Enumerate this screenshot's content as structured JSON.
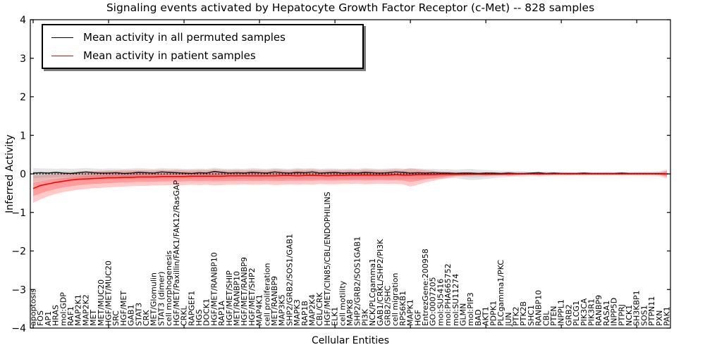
{
  "figure": {
    "title": "Signaling events activated by Hepatocyte Growth Factor Receptor (c-Met) -- 828 samples",
    "xlabel": "Cellular Entities",
    "ylabel": "Inferred Activity"
  },
  "legend": {
    "items": [
      {
        "label": "Mean activity in all permuted samples",
        "color": "#000000"
      },
      {
        "label": "Mean activity in patient samples",
        "color": "#ff0000"
      }
    ]
  },
  "colors": {
    "background": "#ffffff",
    "axis": "#000000",
    "permuted_line": "#000000",
    "patient_line": "#ff0000",
    "permuted_band": "#999999",
    "patient_band": "#ff2a2a",
    "zero_line": "#000000"
  },
  "chart_data": {
    "type": "line",
    "title": "Signaling events activated by Hepatocyte Growth Factor Receptor (c-Met) -- 828 samples",
    "xlabel": "Cellular Entities",
    "ylabel": "Inferred Activity",
    "ylim": [
      -4,
      4
    ],
    "yticks": [
      4,
      3,
      2,
      1,
      0,
      -1,
      -2,
      -3,
      -4
    ],
    "grid": false,
    "legend_position": "upper left",
    "zero_line": true,
    "categories": [
      "apoptosis",
      "FOS",
      "AP1",
      "HRAS",
      "mol:GDP",
      "RAF1",
      "MAP2K1",
      "MAP2K2",
      "MET",
      "MET/MUC20",
      "HGF/MET/MUC20",
      "SRC",
      "HGF/MET",
      "GAB1",
      "STAT3",
      "CRK",
      "MET/Glomulin",
      "STAT3 (dimer)",
      "cell morphogenesis",
      "HGF/MET/Paxillin/FAK1/FAK12/RasGAP",
      "CRKL",
      "RAPGEF1",
      "HGS",
      "DOCK1",
      "HGF/MET/RANBP10",
      "RAP1A",
      "HGF/MET/SHIP",
      "MET/RANBP10",
      "HGF/MET/RANBP9",
      "HGF/MET/SHP2",
      "MAP4K1",
      "cell proliferation",
      "MET/RANBP9",
      "MAP3K5",
      "SHP2/GRB2/SOS1/GAB1",
      "MAPK3",
      "RAP1B",
      "MAP2K4",
      "CBL/CRK",
      "HGF/MET/CIN85/CBL/ENDOPHILINS",
      "ELK1",
      "cell motility",
      "MAPK8",
      "SHP2/GRB2/SOS1GAB1",
      "PI3K",
      "NCK/PLCgamma1",
      "GAB1/CRKL/SHP2/PI3K",
      "GRB2/SHC",
      "cell migration",
      "RPS6KB1",
      "MAPK1",
      "HGF",
      "EntrezGene:200958",
      "GO:0007205",
      "mol:SU5416",
      "mol:PHA665752",
      "mol:SU11274",
      "GLMN",
      "mol:PIP3",
      "BAD",
      "AKT1",
      "PDPK1",
      "PLCgamma1/PKC",
      "JUN",
      "PTK2",
      "PTK2B",
      "SHC1",
      "RANBP10",
      "CBL",
      "PTEN",
      "INPPL1",
      "GRB2",
      "PLCG1",
      "PIK3CA",
      "PIK3R1",
      "RANBP9",
      "RASA1",
      "INPP5D",
      "PTPRJ",
      "NCK1",
      "SH3KBP1",
      "SOS1",
      "PTPN11",
      "PXN",
      "PAK1"
    ],
    "series": [
      {
        "name": "Mean activity in all permuted samples",
        "color": "#000000",
        "values": [
          0.02,
          0.03,
          0.02,
          0.04,
          0.02,
          0.01,
          0.03,
          0.05,
          0.03,
          0.02,
          0.02,
          0.03,
          0.01,
          0.02,
          0.04,
          0.03,
          0.02,
          0.05,
          0.04,
          0.03,
          0.02,
          0.01,
          0.03,
          0.02,
          0.06,
          0.04,
          0.02,
          0.03,
          0.02,
          0.04,
          0.03,
          0.02,
          0.05,
          0.03,
          0.02,
          0.04,
          0.03,
          0.05,
          0.02,
          0.03,
          0.04,
          0.02,
          0.03,
          0.02,
          0.04,
          0.03,
          0.02,
          0.03,
          0.05,
          0.04,
          0.02,
          0.03,
          0.02,
          0.03,
          0.02,
          0.02,
          0.01,
          0.02,
          0.02,
          0.01,
          0.02,
          0.02,
          0.01,
          0.02,
          0.01,
          0.01,
          0.02,
          0.03,
          0.01,
          0.02,
          0.01,
          0.01,
          0.01,
          0.02,
          0.01,
          0.01,
          0.01,
          0.01,
          0.02,
          0.01,
          0.01,
          0.01,
          0.01,
          0.01,
          0.0
        ]
      },
      {
        "name": "Mean activity in patient samples",
        "color": "#ff0000",
        "values": [
          -0.38,
          -0.3,
          -0.26,
          -0.22,
          -0.19,
          -0.16,
          -0.14,
          -0.13,
          -0.12,
          -0.11,
          -0.1,
          -0.1,
          -0.09,
          -0.09,
          -0.08,
          -0.08,
          -0.08,
          -0.07,
          -0.07,
          -0.07,
          -0.07,
          -0.06,
          -0.06,
          -0.06,
          -0.06,
          -0.06,
          -0.05,
          -0.05,
          -0.05,
          -0.05,
          -0.05,
          -0.05,
          -0.05,
          -0.04,
          -0.04,
          -0.05,
          -0.04,
          -0.04,
          -0.04,
          -0.05,
          -0.04,
          -0.04,
          -0.03,
          -0.03,
          -0.03,
          -0.03,
          -0.03,
          -0.03,
          -0.02,
          -0.03,
          -0.03,
          -0.02,
          -0.02,
          -0.02,
          -0.01,
          -0.01,
          -0.01,
          -0.01,
          -0.01,
          -0.01,
          -0.01,
          -0.01,
          -0.01,
          0.0,
          0.0,
          0.0,
          0.0,
          0.0,
          0.0,
          0.0,
          0.0,
          0.0,
          0.0,
          0.0,
          0.0,
          0.0,
          0.0,
          0.0,
          0.0,
          0.0,
          0.0,
          0.0,
          0.0,
          0.0,
          0.0
        ]
      }
    ],
    "bands": [
      {
        "name": "permuted-confidence",
        "color": "#999999",
        "upper": [
          0.15,
          0.14,
          0.14,
          0.13,
          0.14,
          0.13,
          0.14,
          0.15,
          0.14,
          0.13,
          0.14,
          0.14,
          0.13,
          0.14,
          0.15,
          0.14,
          0.13,
          0.15,
          0.14,
          0.14,
          0.13,
          0.13,
          0.14,
          0.13,
          0.16,
          0.14,
          0.13,
          0.14,
          0.13,
          0.15,
          0.14,
          0.13,
          0.15,
          0.14,
          0.13,
          0.15,
          0.14,
          0.15,
          0.13,
          0.14,
          0.14,
          0.13,
          0.14,
          0.13,
          0.15,
          0.14,
          0.13,
          0.14,
          0.15,
          0.14,
          0.13,
          0.14,
          0.13,
          0.13,
          0.12,
          0.12,
          0.11,
          0.12,
          0.13,
          0.11,
          0.1,
          0.09,
          0.08,
          0.08,
          0.07,
          0.07,
          0.06,
          0.07,
          0.06,
          0.06,
          0.06,
          0.05,
          0.05,
          0.06,
          0.05,
          0.05,
          0.06,
          0.05,
          0.06,
          0.05,
          0.06,
          0.06,
          0.06,
          0.07,
          0.12
        ],
        "lower": [
          -0.2,
          -0.18,
          -0.17,
          -0.16,
          -0.15,
          -0.15,
          -0.14,
          -0.15,
          -0.14,
          -0.14,
          -0.14,
          -0.14,
          -0.13,
          -0.14,
          -0.14,
          -0.14,
          -0.13,
          -0.14,
          -0.14,
          -0.14,
          -0.13,
          -0.13,
          -0.14,
          -0.13,
          -0.15,
          -0.14,
          -0.13,
          -0.14,
          -0.13,
          -0.14,
          -0.14,
          -0.13,
          -0.14,
          -0.14,
          -0.13,
          -0.14,
          -0.14,
          -0.14,
          -0.13,
          -0.14,
          -0.14,
          -0.13,
          -0.14,
          -0.13,
          -0.14,
          -0.14,
          -0.13,
          -0.14,
          -0.14,
          -0.14,
          -0.13,
          -0.14,
          -0.13,
          -0.13,
          -0.12,
          -0.12,
          -0.11,
          -0.14,
          -0.16,
          -0.15,
          -0.13,
          -0.11,
          -0.09,
          -0.08,
          -0.07,
          -0.07,
          -0.06,
          -0.07,
          -0.06,
          -0.06,
          -0.06,
          -0.05,
          -0.05,
          -0.06,
          -0.05,
          -0.05,
          -0.06,
          -0.05,
          -0.06,
          -0.05,
          -0.06,
          -0.06,
          -0.06,
          -0.07,
          -0.12
        ]
      },
      {
        "name": "patient-confidence",
        "color": "#ff2a2a",
        "upper": [
          -0.04,
          -0.03,
          -0.02,
          -0.01,
          0.01,
          0.03,
          0.05,
          0.06,
          0.07,
          0.08,
          0.09,
          0.09,
          0.1,
          0.1,
          0.1,
          0.1,
          0.1,
          0.11,
          0.1,
          0.11,
          0.1,
          0.1,
          0.11,
          0.1,
          0.12,
          0.11,
          0.1,
          0.11,
          0.1,
          0.11,
          0.11,
          0.1,
          0.12,
          0.11,
          0.1,
          0.12,
          0.11,
          0.12,
          0.1,
          0.11,
          0.11,
          0.1,
          0.11,
          0.1,
          0.12,
          0.11,
          0.1,
          0.11,
          0.12,
          0.11,
          0.15,
          0.12,
          0.1,
          0.08,
          0.06,
          0.05,
          0.04,
          0.03,
          0.03,
          0.02,
          0.04,
          0.02,
          0.02,
          0.05,
          0.03,
          0.02,
          0.02,
          0.04,
          0.02,
          0.02,
          0.02,
          0.03,
          0.02,
          0.02,
          0.02,
          0.02,
          0.02,
          0.02,
          0.02,
          0.02,
          0.02,
          0.02,
          0.02,
          0.03,
          0.09
        ],
        "lower": [
          -0.75,
          -0.66,
          -0.58,
          -0.52,
          -0.47,
          -0.44,
          -0.41,
          -0.39,
          -0.37,
          -0.36,
          -0.35,
          -0.34,
          -0.33,
          -0.32,
          -0.31,
          -0.31,
          -0.3,
          -0.3,
          -0.29,
          -0.3,
          -0.29,
          -0.28,
          -0.29,
          -0.28,
          -0.3,
          -0.29,
          -0.28,
          -0.28,
          -0.27,
          -0.28,
          -0.28,
          -0.27,
          -0.29,
          -0.28,
          -0.27,
          -0.28,
          -0.27,
          -0.28,
          -0.26,
          -0.27,
          -0.27,
          -0.26,
          -0.26,
          -0.25,
          -0.27,
          -0.26,
          -0.25,
          -0.26,
          -0.26,
          -0.27,
          -0.33,
          -0.28,
          -0.22,
          -0.18,
          -0.14,
          -0.1,
          -0.07,
          -0.05,
          -0.04,
          -0.03,
          -0.05,
          -0.03,
          -0.03,
          -0.06,
          -0.04,
          -0.03,
          -0.02,
          -0.04,
          -0.03,
          -0.02,
          -0.02,
          -0.03,
          -0.02,
          -0.02,
          -0.02,
          -0.02,
          -0.02,
          -0.02,
          -0.02,
          -0.02,
          -0.02,
          -0.02,
          -0.02,
          -0.03,
          -0.09
        ]
      }
    ]
  }
}
